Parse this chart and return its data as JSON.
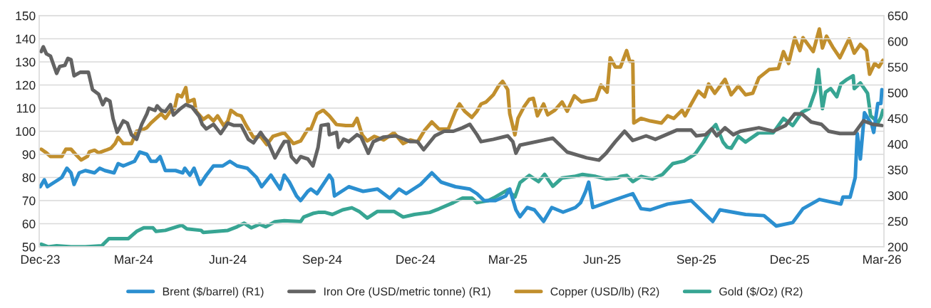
{
  "chart_data": {
    "type": "line",
    "xlim": [
      "2023-11-30",
      "2026-03-03"
    ],
    "xticks": [
      {
        "value": "2023-12-01",
        "label": "Dec-23"
      },
      {
        "value": "2024-03-01",
        "label": "Mar-24"
      },
      {
        "value": "2024-06-01",
        "label": "Jun-24"
      },
      {
        "value": "2024-09-01",
        "label": "Sep-24"
      },
      {
        "value": "2024-12-01",
        "label": "Dec-24"
      },
      {
        "value": "2025-03-01",
        "label": "Mar-25"
      },
      {
        "value": "2025-06-01",
        "label": "Jun-25"
      },
      {
        "value": "2025-09-01",
        "label": "Sep-25"
      },
      {
        "value": "2025-12-01",
        "label": "Dec-25"
      },
      {
        "value": "2026-03-01",
        "label": "Mar-26"
      }
    ],
    "ylim": [
      50,
      150
    ],
    "yticks": [
      50,
      60,
      70,
      80,
      90,
      100,
      110,
      120,
      130,
      140,
      150
    ],
    "y2lim": [
      200,
      650
    ],
    "y2ticks": [
      200,
      250,
      300,
      350,
      400,
      450,
      500,
      550,
      600,
      650
    ],
    "grid": "y",
    "legend": "bottom",
    "line_style": "solid",
    "series": [
      {
        "name": "Brent ($/barrel) (R1)",
        "color": "#2b8fd0",
        "x": [
          "2023-12-01",
          "2023-12-05",
          "2023-12-08",
          "2023-12-15",
          "2023-12-22",
          "2023-12-27",
          "2023-12-31",
          "2024-01-03",
          "2024-01-08",
          "2024-01-14",
          "2024-01-23",
          "2024-01-28",
          "2024-02-02",
          "2024-02-11",
          "2024-02-15",
          "2024-02-20",
          "2024-03-02",
          "2024-03-07",
          "2024-03-14",
          "2024-03-18",
          "2024-03-23",
          "2024-03-27",
          "2024-04-01",
          "2024-04-11",
          "2024-04-18",
          "2024-04-20",
          "2024-04-25",
          "2024-04-29",
          "2024-05-05",
          "2024-05-11",
          "2024-05-18",
          "2024-05-27",
          "2024-06-03",
          "2024-06-10",
          "2024-06-20",
          "2024-06-29",
          "2024-07-04",
          "2024-07-13",
          "2024-07-22",
          "2024-07-26",
          "2024-07-31",
          "2024-08-07",
          "2024-08-11",
          "2024-08-18",
          "2024-08-21",
          "2024-08-27",
          "2024-09-08",
          "2024-09-11",
          "2024-09-13",
          "2024-09-27",
          "2024-10-11",
          "2024-10-25",
          "2024-11-06",
          "2024-11-15",
          "2024-11-22",
          "2024-12-06",
          "2024-12-17",
          "2024-12-26",
          "2025-01-09",
          "2025-01-23",
          "2025-01-30",
          "2025-02-06",
          "2025-02-17",
          "2025-02-27",
          "2025-03-03",
          "2025-03-09",
          "2025-03-13",
          "2025-03-20",
          "2025-03-27",
          "2025-04-05",
          "2025-04-13",
          "2025-04-24",
          "2025-05-06",
          "2025-05-11",
          "2025-05-16",
          "2025-05-19",
          "2025-05-23",
          "2025-06-11",
          "2025-07-01",
          "2025-07-09",
          "2025-07-18",
          "2025-08-04",
          "2025-08-27",
          "2025-09-17",
          "2025-09-24",
          "2025-10-19",
          "2025-11-06",
          "2025-11-18",
          "2025-12-04",
          "2025-12-14",
          "2025-12-30",
          "2026-01-20",
          "2026-01-22",
          "2026-01-29",
          "2026-02-03",
          "2026-02-05",
          "2026-02-08",
          "2026-02-12",
          "2026-02-19",
          "2026-02-21",
          "2026-02-25",
          "2026-02-28",
          "2026-03-01"
        ],
        "values": [
          76,
          79,
          76,
          78,
          80,
          84,
          82,
          77,
          82,
          83,
          82,
          84,
          83,
          82,
          86,
          85,
          87,
          91,
          90,
          87,
          87,
          89,
          83,
          83,
          82,
          84,
          81,
          84,
          77,
          81,
          85,
          85,
          87,
          85,
          84,
          80,
          76,
          81,
          75,
          81,
          78,
          72,
          70,
          74,
          75,
          73,
          81,
          79,
          72,
          76,
          74,
          75,
          71,
          75,
          73,
          77,
          82,
          78,
          76,
          75,
          73,
          70,
          70,
          72,
          75,
          66,
          63,
          67,
          66,
          61,
          67,
          65,
          67,
          69,
          74,
          78,
          67,
          70,
          73,
          66.5,
          66,
          68.5,
          70,
          61,
          66,
          64,
          63.5,
          59,
          60.5,
          66.5,
          70.5,
          68.5,
          71.5,
          71.5,
          80,
          99,
          88,
          108,
          103,
          99.5,
          112,
          112,
          118
        ]
      },
      {
        "name": "Iron Ore (USD/metric tonne) (R1)",
        "color": "#636363",
        "x": [
          "2023-12-02",
          "2023-12-04",
          "2023-12-07",
          "2023-12-11",
          "2023-12-17",
          "2023-12-20",
          "2023-12-25",
          "2023-12-28",
          "2023-12-31",
          "2024-01-03",
          "2024-01-09",
          "2024-01-17",
          "2024-01-21",
          "2024-01-27",
          "2024-01-31",
          "2024-02-03",
          "2024-02-07",
          "2024-02-10",
          "2024-02-14",
          "2024-02-20",
          "2024-02-24",
          "2024-02-28",
          "2024-03-04",
          "2024-03-09",
          "2024-03-14",
          "2024-03-16",
          "2024-03-22",
          "2024-03-24",
          "2024-03-28",
          "2024-04-01",
          "2024-04-06",
          "2024-04-09",
          "2024-04-15",
          "2024-04-21",
          "2024-04-27",
          "2024-05-04",
          "2024-05-07",
          "2024-05-11",
          "2024-05-18",
          "2024-05-25",
          "2024-06-01",
          "2024-06-07",
          "2024-06-14",
          "2024-06-21",
          "2024-06-26",
          "2024-07-03",
          "2024-07-06",
          "2024-07-10",
          "2024-07-17",
          "2024-07-22",
          "2024-07-26",
          "2024-07-30",
          "2024-08-02",
          "2024-08-07",
          "2024-08-11",
          "2024-08-18",
          "2024-08-23",
          "2024-08-28",
          "2024-08-31",
          "2024-09-07",
          "2024-09-08",
          "2024-09-15",
          "2024-09-17",
          "2024-09-22",
          "2024-09-27",
          "2024-10-05",
          "2024-10-09",
          "2024-10-16",
          "2024-10-21",
          "2024-10-31",
          "2024-11-12",
          "2024-11-26",
          "2024-12-03",
          "2024-12-09",
          "2024-12-20",
          "2024-12-29",
          "2025-01-07",
          "2025-01-16",
          "2025-01-23",
          "2025-01-30",
          "2025-02-03",
          "2025-02-15",
          "2025-03-01",
          "2025-03-06",
          "2025-03-09",
          "2025-03-13",
          "2025-04-14",
          "2025-04-28",
          "2025-05-17",
          "2025-05-29",
          "2025-06-05",
          "2025-06-14",
          "2025-06-23",
          "2025-07-01",
          "2025-07-14",
          "2025-07-23",
          "2025-08-13",
          "2025-08-27",
          "2025-09-01",
          "2025-09-10",
          "2025-09-16",
          "2025-09-21",
          "2025-09-29",
          "2025-10-07",
          "2025-10-14",
          "2025-11-01",
          "2025-11-15",
          "2025-11-27",
          "2025-12-06",
          "2025-12-13",
          "2025-12-22",
          "2026-01-01",
          "2026-01-08",
          "2026-01-19",
          "2026-02-02",
          "2026-02-11",
          "2026-02-20",
          "2026-03-01"
        ],
        "values": [
          134.5,
          136.5,
          133.5,
          132.5,
          125,
          128,
          128.5,
          131.5,
          131,
          124,
          125.5,
          125.5,
          118,
          116,
          111.5,
          114,
          113,
          105.5,
          99.5,
          104.5,
          103.5,
          98.5,
          96.5,
          103,
          107.5,
          110,
          109,
          111,
          109,
          108.5,
          111.5,
          107,
          109.5,
          111.5,
          110.5,
          106.5,
          103,
          101,
          103,
          99,
          103.5,
          102.5,
          102.5,
          96.5,
          95,
          99.5,
          97.5,
          95.5,
          88.5,
          92.5,
          95.5,
          95.5,
          89,
          86.5,
          89,
          88,
          85,
          93,
          102.5,
          103,
          98.5,
          99.5,
          93,
          96.5,
          95.5,
          98.5,
          97.5,
          90.5,
          95.5,
          97.5,
          98,
          95.5,
          95.5,
          92,
          98,
          100,
          100,
          101.5,
          103,
          98.5,
          95.5,
          96.5,
          98,
          95.5,
          90.5,
          94,
          97,
          91,
          88.5,
          87.5,
          90.5,
          95.5,
          100,
          96,
          98,
          96.5,
          100.5,
          100.5,
          98,
          98.5,
          101,
          98,
          101.5,
          98.5,
          100,
          101.5,
          100,
          102.5,
          107.5,
          107.5,
          104,
          103,
          100,
          99,
          99,
          104.5,
          103,
          102.5
        ]
      },
      {
        "name": "Copper (USD/lb) (R2)",
        "color": "#c18f2d",
        "axis": "y2",
        "x": [
          "2023-12-02",
          "2023-12-07",
          "2023-12-11",
          "2023-12-22",
          "2023-12-26",
          "2023-12-31",
          "2024-01-04",
          "2024-01-10",
          "2024-01-16",
          "2024-01-18",
          "2024-01-23",
          "2024-01-27",
          "2024-02-03",
          "2024-02-08",
          "2024-02-12",
          "2024-02-15",
          "2024-02-20",
          "2024-02-28",
          "2024-03-04",
          "2024-03-09",
          "2024-03-14",
          "2024-03-18",
          "2024-03-23",
          "2024-03-28",
          "2024-04-01",
          "2024-04-06",
          "2024-04-10",
          "2024-04-13",
          "2024-04-17",
          "2024-04-21",
          "2024-04-23",
          "2024-04-29",
          "2024-05-01",
          "2024-05-08",
          "2024-05-13",
          "2024-05-18",
          "2024-05-22",
          "2024-05-28",
          "2024-06-01",
          "2024-06-04",
          "2024-06-10",
          "2024-06-14",
          "2024-06-19",
          "2024-06-26",
          "2024-07-03",
          "2024-07-09",
          "2024-07-15",
          "2024-07-26",
          "2024-08-04",
          "2024-08-11",
          "2024-08-18",
          "2024-08-21",
          "2024-08-27",
          "2024-09-02",
          "2024-09-08",
          "2024-09-15",
          "2024-09-24",
          "2024-10-01",
          "2024-10-05",
          "2024-10-10",
          "2024-10-15",
          "2024-10-22",
          "2024-10-31",
          "2024-11-10",
          "2024-11-19",
          "2024-11-26",
          "2024-12-03",
          "2024-12-10",
          "2024-12-17",
          "2024-12-24",
          "2025-01-02",
          "2025-01-09",
          "2025-01-13",
          "2025-01-18",
          "2025-01-25",
          "2025-01-30",
          "2025-02-03",
          "2025-02-08",
          "2025-02-15",
          "2025-02-20",
          "2025-02-24",
          "2025-03-01",
          "2025-03-03",
          "2025-03-08",
          "2025-03-11",
          "2025-03-17",
          "2025-03-22",
          "2025-03-26",
          "2025-03-30",
          "2025-04-05",
          "2025-04-09",
          "2025-04-16",
          "2025-04-23",
          "2025-04-28",
          "2025-05-05",
          "2025-05-12",
          "2025-05-26",
          "2025-05-31",
          "2025-06-06",
          "2025-06-09",
          "2025-06-14",
          "2025-06-19",
          "2025-06-25",
          "2025-06-28",
          "2025-07-01",
          "2025-07-02",
          "2025-07-09",
          "2025-07-18",
          "2025-07-29",
          "2025-08-04",
          "2025-08-10",
          "2025-08-18",
          "2025-08-21",
          "2025-08-27",
          "2025-09-03",
          "2025-09-09",
          "2025-09-13",
          "2025-09-19",
          "2025-09-29",
          "2025-10-05",
          "2025-10-12",
          "2025-10-19",
          "2025-10-26",
          "2025-11-01",
          "2025-11-11",
          "2025-11-20",
          "2025-11-25",
          "2025-11-30",
          "2025-12-06",
          "2025-12-11",
          "2025-12-14",
          "2025-12-24",
          "2025-12-30",
          "2026-01-02",
          "2026-01-06",
          "2026-01-12",
          "2026-01-19",
          "2026-01-28",
          "2026-02-02",
          "2026-02-08",
          "2026-02-14",
          "2026-02-17",
          "2026-02-22",
          "2026-02-26",
          "2026-03-02"
        ],
        "values": [
          390,
          383,
          376,
          376,
          390,
          390,
          381,
          369,
          376,
          385,
          388,
          383,
          388,
          392,
          401,
          413,
          401,
          401,
          425,
          427,
          432,
          441,
          450,
          459,
          450,
          464,
          469,
          496,
          492,
          510,
          482,
          487,
          464,
          448,
          455,
          445,
          455,
          436,
          445,
          466,
          457,
          455,
          436,
          413,
          415,
          399,
          415,
          422,
          401,
          406,
          429,
          429,
          459,
          466,
          455,
          438,
          436,
          436,
          450,
          418,
          406,
          415,
          408,
          422,
          401,
          408,
          404,
          427,
          443,
          429,
          429,
          464,
          478,
          464,
          452,
          464,
          478,
          482,
          496,
          513,
          522,
          506,
          459,
          418,
          450,
          473,
          487,
          489,
          455,
          478,
          457,
          466,
          482,
          464,
          494,
          482,
          487,
          515,
          501,
          568,
          550,
          550,
          582,
          561,
          561,
          441,
          450,
          445,
          441,
          455,
          450,
          466,
          455,
          478,
          503,
          492,
          517,
          499,
          526,
          496,
          513,
          496,
          499,
          529,
          545,
          547,
          580,
          557,
          607,
          582,
          607,
          580,
          624,
          587,
          610,
          589,
          568,
          605,
          577,
          594,
          582,
          536,
          557,
          550,
          563
        ]
      },
      {
        "name": "Gold ($/Oz) (R2)",
        "color": "#37a593",
        "axis": "y2",
        "x": [
          "2023-12-02",
          "2023-12-09",
          "2023-12-17",
          "2023-12-31",
          "2024-01-14",
          "2024-01-30",
          "2024-02-06",
          "2024-02-25",
          "2024-03-04",
          "2024-03-11",
          "2024-03-20",
          "2024-03-23",
          "2024-04-01",
          "2024-04-17",
          "2024-04-22",
          "2024-05-06",
          "2024-05-08",
          "2024-06-01",
          "2024-06-10",
          "2024-06-17",
          "2024-06-24",
          "2024-07-02",
          "2024-07-08",
          "2024-07-17",
          "2024-07-26",
          "2024-08-11",
          "2024-08-14",
          "2024-08-23",
          "2024-08-28",
          "2024-09-04",
          "2024-09-11",
          "2024-09-21",
          "2024-09-30",
          "2024-10-07",
          "2024-10-15",
          "2024-10-25",
          "2024-11-10",
          "2024-11-19",
          "2024-11-30",
          "2024-12-15",
          "2024-12-24",
          "2025-01-07",
          "2025-01-16",
          "2025-01-25",
          "2025-01-30",
          "2025-02-10",
          "2025-02-17",
          "2025-03-01",
          "2025-03-08",
          "2025-03-13",
          "2025-03-22",
          "2025-03-31",
          "2025-04-06",
          "2025-04-14",
          "2025-04-23",
          "2025-05-05",
          "2025-05-13",
          "2025-05-26",
          "2025-06-05",
          "2025-06-16",
          "2025-06-19",
          "2025-06-25",
          "2025-07-01",
          "2025-07-09",
          "2025-07-20",
          "2025-07-30",
          "2025-08-09",
          "2025-08-20",
          "2025-08-31",
          "2025-09-08",
          "2025-09-15",
          "2025-09-20",
          "2025-09-27",
          "2025-10-01",
          "2025-10-05",
          "2025-10-12",
          "2025-10-19",
          "2025-11-01",
          "2025-11-15",
          "2025-11-25",
          "2025-12-04",
          "2025-12-13",
          "2025-12-20",
          "2025-12-26",
          "2025-12-29",
          "2026-01-02",
          "2026-01-05",
          "2026-01-10",
          "2026-01-16",
          "2026-01-20",
          "2026-01-26",
          "2026-02-01",
          "2026-02-02",
          "2026-02-08",
          "2026-02-15",
          "2026-02-18",
          "2026-02-22",
          "2026-02-25",
          "2026-02-28",
          "2026-03-02"
        ],
        "values": [
          205,
          200,
          202,
          200,
          200,
          202,
          216,
          216,
          230,
          237,
          237,
          230,
          232,
          242,
          235,
          232,
          228,
          232,
          239,
          246,
          237,
          244,
          239,
          249,
          251,
          249,
          258,
          265,
          267,
          267,
          263,
          272,
          276,
          269,
          256,
          269,
          269,
          258,
          263,
          267,
          274,
          286,
          295,
          295,
          286,
          290,
          297,
          311,
          297,
          325,
          339,
          327,
          341,
          318,
          334,
          337,
          341,
          337,
          332,
          334,
          337,
          339,
          327,
          337,
          332,
          341,
          362,
          367,
          381,
          404,
          427,
          438,
          404,
          394,
          392,
          415,
          404,
          422,
          422,
          450,
          436,
          462,
          469,
          503,
          545,
          469,
          501,
          508,
          492,
          517,
          526,
          533,
          508,
          519,
          499,
          455,
          448,
          441,
          452,
          466
        ]
      }
    ]
  }
}
